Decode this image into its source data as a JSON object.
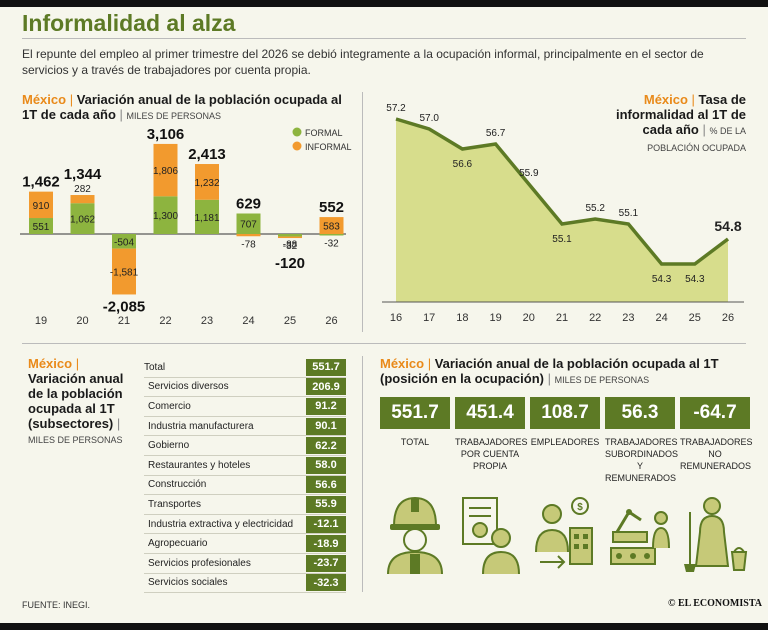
{
  "header": {
    "title": "Informalidad al alza",
    "lede": "El repunte del empleo al primer trimestre del 2026 se debió integramente a la ocupación informal, principalmente en el sector de servicios y a través de trabajadores por cuenta propia."
  },
  "colors": {
    "green": "#5d7a25",
    "light_green": "#8db43f",
    "orange": "#f29a2e",
    "area_fill": "#d7dd8c"
  },
  "chart1": {
    "country": "México",
    "title": "Variación anual de la población ocupada al 1T de cada año",
    "unit": "MILES DE PERSONAS",
    "legend": [
      "FORMAL",
      "INFORMAL"
    ]
  },
  "chart2": {
    "country": "México",
    "title": "Tasa de informalidad al 1T de cada año",
    "unit": "% DE LA POBLACIÓN OCUPADA"
  },
  "chart3": {
    "country": "México",
    "title": "Variación anual de la población ocupada al 1T (subsectores)",
    "unit": "MILES DE PERSONAS"
  },
  "chart4": {
    "country": "México",
    "title": "Variación anual de la población ocupada al 1T (posición en la ocupación)",
    "unit": "MILES DE PERSONAS"
  },
  "chart_data": [
    {
      "type": "bar",
      "stacked": true,
      "categories": [
        "19",
        "20",
        "21",
        "22",
        "23",
        "24",
        "25",
        "26"
      ],
      "series": [
        {
          "name": "FORMAL",
          "values": [
            551,
            1062,
            -504,
            1300,
            1181,
            707,
            -88,
            -32
          ]
        },
        {
          "name": "INFORMAL",
          "values": [
            910,
            282,
            -1581,
            1806,
            1232,
            -78,
            -32,
            583
          ]
        }
      ],
      "totals": [
        1462,
        1344,
        -2085,
        3106,
        2413,
        629,
        -120,
        552
      ],
      "unit": "MILES DE PERSONAS"
    },
    {
      "type": "area",
      "x": [
        "16",
        "17",
        "18",
        "19",
        "20",
        "21",
        "22",
        "23",
        "24",
        "25",
        "26"
      ],
      "values": [
        57.2,
        57.0,
        56.6,
        56.7,
        55.9,
        55.1,
        55.2,
        55.1,
        54.3,
        54.3,
        54.8
      ],
      "value_labels": [
        "57.2",
        "57.0",
        "56.6",
        "56.7",
        "55.9",
        "55.1",
        "55.2",
        "55.1",
        "54.3",
        "54.3",
        "54.8"
      ],
      "unit": "% DE LA POBLACIÓN OCUPADA"
    },
    {
      "type": "table",
      "rows": [
        {
          "label": "Total",
          "value": "551.7"
        },
        {
          "label": "Servicios diversos",
          "value": "206.9"
        },
        {
          "label": "Comercio",
          "value": "91.2"
        },
        {
          "label": "Industria manufacturera",
          "value": "90.1"
        },
        {
          "label": "Gobierno",
          "value": "62.2"
        },
        {
          "label": "Restaurantes y hoteles",
          "value": "58.0"
        },
        {
          "label": "Construcción",
          "value": "56.6"
        },
        {
          "label": "Transportes",
          "value": "55.9"
        },
        {
          "label": "Industria extractiva y electricidad",
          "value": "-12.1"
        },
        {
          "label": "Agropecuario",
          "value": "-18.9"
        },
        {
          "label": "Servicios profesionales",
          "value": "-23.7"
        },
        {
          "label": "Servicios sociales",
          "value": "-32.3"
        }
      ]
    },
    {
      "type": "table",
      "rows": [
        {
          "label": "TOTAL",
          "value": "551.7",
          "icon": "worker-icon"
        },
        {
          "label": "TRABAJADORES POR CUENTA PROPIA",
          "value": "451.4",
          "icon": "self-employed-icon"
        },
        {
          "label": "EMPLEADORES",
          "value": "108.7",
          "icon": "employer-icon"
        },
        {
          "label": "TRABAJADORES SUBORDINADOS Y REMUNERADOS",
          "value": "56.3",
          "icon": "factory-worker-icon"
        },
        {
          "label": "TRABAJADORES NO REMUNERADOS",
          "value": "-64.7",
          "icon": "cleaning-worker-icon"
        }
      ]
    }
  ],
  "footer": {
    "source": "FUENTE: INEGI.",
    "brand": "© EL ECONOMISTA"
  }
}
